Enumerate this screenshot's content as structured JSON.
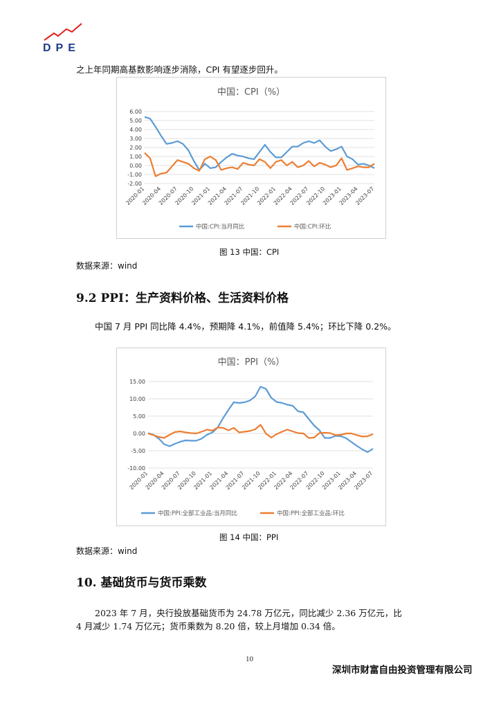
{
  "header": {
    "logo_text": "DPE",
    "accent_color": "#e02020",
    "brand_color": "#1d3b8c"
  },
  "intro_line": "之上年同期高基数影响逐步消除，CPI 有望逐步回升。",
  "cpi_chart": {
    "caption": "图 13 中国：CPI",
    "source": "数据来源：wind",
    "chart_data": {
      "type": "line",
      "title": "中国：CPI（%）",
      "xlabel": "",
      "ylabel": "",
      "ylim": [
        -2,
        6
      ],
      "yticks": [
        "6.00",
        "5.00",
        "4.00",
        "3.00",
        "2.00",
        "1.00",
        "0.00",
        "-1.00",
        "-2.00"
      ],
      "ytick_values": [
        6,
        5,
        4,
        3,
        2,
        1,
        0,
        -1,
        -2
      ],
      "xticks": [
        "2020-01",
        "2020-04",
        "2020-07",
        "2020-10",
        "2021-01",
        "2021-04",
        "2021-07",
        "2021-10",
        "2022-01",
        "2022-04",
        "2022-07",
        "2022-10",
        "2023-01",
        "2023-04",
        "2023-07"
      ],
      "x": [
        "2020-01",
        "2020-02",
        "2020-03",
        "2020-04",
        "2020-05",
        "2020-06",
        "2020-07",
        "2020-08",
        "2020-09",
        "2020-10",
        "2020-11",
        "2020-12",
        "2021-01",
        "2021-02",
        "2021-03",
        "2021-04",
        "2021-05",
        "2021-06",
        "2021-07",
        "2021-08",
        "2021-09",
        "2021-10",
        "2021-11",
        "2021-12",
        "2022-01",
        "2022-02",
        "2022-03",
        "2022-04",
        "2022-05",
        "2022-06",
        "2022-07",
        "2022-08",
        "2022-09",
        "2022-10",
        "2022-11",
        "2022-12",
        "2023-01",
        "2023-02",
        "2023-03",
        "2023-04",
        "2023-05",
        "2023-06",
        "2023-07"
      ],
      "grid": true,
      "legend_position": "bottom",
      "series": [
        {
          "name": "中国:CPI:当月同比",
          "color": "#5b9bd5",
          "values": [
            5.4,
            5.2,
            4.3,
            3.3,
            2.4,
            2.5,
            2.7,
            2.4,
            1.7,
            0.5,
            -0.5,
            0.2,
            -0.3,
            -0.2,
            0.4,
            0.9,
            1.3,
            1.1,
            1.0,
            0.8,
            0.7,
            1.5,
            2.3,
            1.5,
            0.9,
            0.9,
            1.5,
            2.1,
            2.1,
            2.5,
            2.7,
            2.5,
            2.8,
            2.1,
            1.6,
            1.8,
            2.1,
            1.0,
            0.7,
            0.1,
            0.2,
            0.0,
            -0.3
          ]
        },
        {
          "name": "中国:CPI:环比",
          "color": "#ed7d31",
          "values": [
            1.4,
            0.8,
            -1.2,
            -0.9,
            -0.8,
            -0.1,
            0.6,
            0.4,
            0.2,
            -0.3,
            -0.6,
            0.7,
            1.0,
            0.6,
            -0.5,
            -0.3,
            -0.2,
            -0.4,
            0.3,
            0.1,
            0.0,
            0.7,
            0.4,
            -0.3,
            0.4,
            0.6,
            0.0,
            0.4,
            -0.2,
            0.0,
            0.5,
            -0.1,
            0.3,
            0.1,
            -0.2,
            0.0,
            0.8,
            -0.5,
            -0.3,
            -0.1,
            -0.2,
            -0.2,
            0.2
          ]
        }
      ]
    }
  },
  "section_9_2": {
    "heading": "9.2 PPI：生产资料价格、生活资料价格",
    "text": "中国 7 月 PPI 同比降 4.4%，预期降 4.1%，前值降 5.4%；环比下降 0.2%。"
  },
  "ppi_chart": {
    "caption": "图 14 中国：PPI",
    "source": "数据来源：wind",
    "chart_data": {
      "type": "line",
      "title": "中国：PPI（%）",
      "xlabel": "",
      "ylabel": "",
      "ylim": [
        -10,
        15
      ],
      "yticks": [
        "15.00",
        "10.00",
        "5.00",
        "0.00",
        "-5.00",
        "-10.00"
      ],
      "ytick_values": [
        15,
        10,
        5,
        0,
        -5,
        -10
      ],
      "xticks": [
        "2020-01",
        "2020-04",
        "2020-07",
        "2020-10",
        "2021-01",
        "2021-04",
        "2021-07",
        "2021-10",
        "2022-01",
        "2022-04",
        "2022-07",
        "2022-10",
        "2023-01",
        "2023-04",
        "2023-07"
      ],
      "x": [
        "2020-01",
        "2020-02",
        "2020-03",
        "2020-04",
        "2020-05",
        "2020-06",
        "2020-07",
        "2020-08",
        "2020-09",
        "2020-10",
        "2020-11",
        "2020-12",
        "2021-01",
        "2021-02",
        "2021-03",
        "2021-04",
        "2021-05",
        "2021-06",
        "2021-07",
        "2021-08",
        "2021-09",
        "2021-10",
        "2021-11",
        "2021-12",
        "2022-01",
        "2022-02",
        "2022-03",
        "2022-04",
        "2022-05",
        "2022-06",
        "2022-07",
        "2022-08",
        "2022-09",
        "2022-10",
        "2022-11",
        "2022-12",
        "2023-01",
        "2023-02",
        "2023-03",
        "2023-04",
        "2023-05",
        "2023-06",
        "2023-07"
      ],
      "grid": true,
      "legend_position": "bottom",
      "series": [
        {
          "name": "中国:PPI:全部工业品:当月同比",
          "color": "#5b9bd5",
          "values": [
            0.1,
            -0.4,
            -1.5,
            -3.1,
            -3.7,
            -3.0,
            -2.4,
            -2.0,
            -2.1,
            -2.1,
            -1.5,
            -0.4,
            0.3,
            1.7,
            4.4,
            6.8,
            9.0,
            8.8,
            9.0,
            9.5,
            10.7,
            13.5,
            12.9,
            10.3,
            9.1,
            8.8,
            8.3,
            8.0,
            6.4,
            6.1,
            4.2,
            2.3,
            0.9,
            -1.3,
            -1.3,
            -0.7,
            -0.8,
            -1.4,
            -2.5,
            -3.6,
            -4.6,
            -5.4,
            -4.4
          ]
        },
        {
          "name": "中国:PPI:全部工业品:环比",
          "color": "#ed7d31",
          "values": [
            0.0,
            -0.5,
            -1.0,
            -1.3,
            -0.4,
            0.4,
            0.6,
            0.3,
            0.1,
            0.0,
            0.5,
            1.1,
            0.8,
            1.7,
            1.6,
            0.9,
            1.6,
            0.3,
            0.5,
            0.7,
            1.2,
            2.5,
            0.0,
            -1.2,
            -0.2,
            0.5,
            1.1,
            0.6,
            0.1,
            0.0,
            -1.3,
            -1.2,
            0.1,
            0.2,
            0.1,
            -0.5,
            -0.4,
            0.0,
            0.0,
            -0.5,
            -0.9,
            -0.8,
            -0.2
          ]
        }
      ]
    }
  },
  "section_10": {
    "heading": "10. 基础货币与货币乘数",
    "line1": "2023 年 7 月，央行投放基础货币为 24.78 万亿元，同比减少 2.36 万亿元，比",
    "line2": "4 月减少 1.74 万亿元；货币乘数为 8.20 倍，较上月增加 0.34 倍。"
  },
  "footer": {
    "page_number": "10",
    "company": "深圳市财富自由投资管理有限公司"
  }
}
